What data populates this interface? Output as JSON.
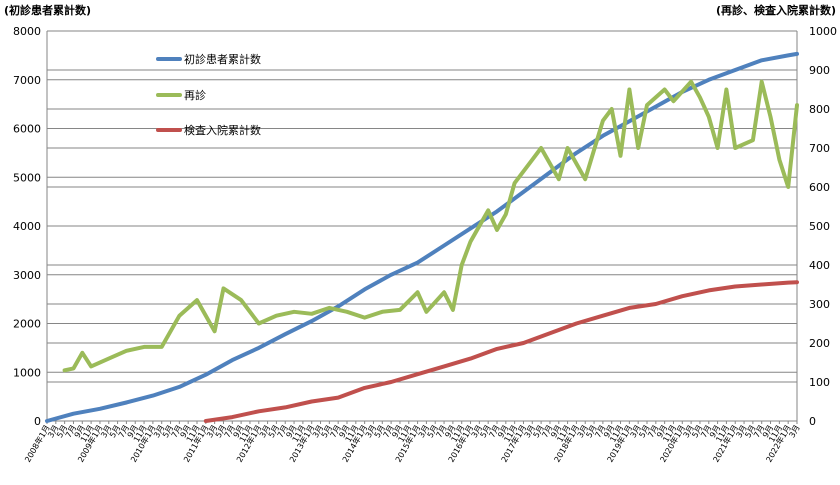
{
  "chart_data": {
    "type": "line",
    "ylabel_left": "(初診患者累計数)",
    "ylabel_right": "(再診、検査入院累計数)",
    "ylim_left": [
      0,
      8000
    ],
    "ylim_right": [
      0,
      1000
    ],
    "yticks_left": [
      "0",
      "1000",
      "2000",
      "3000",
      "4000",
      "5000",
      "6000",
      "7000",
      "8000"
    ],
    "yticks_right": [
      "0",
      "100",
      "200",
      "300",
      "400",
      "500",
      "600",
      "700",
      "800",
      "900",
      "1000"
    ],
    "grid": true,
    "legend_position": "top-left",
    "x_range": [
      "2008年1月",
      "2022年3月"
    ],
    "x_major_labels": [
      "2008年1月",
      "2009年1月",
      "2010年1月",
      "2011年1月",
      "2012年1月",
      "2013年1月",
      "2014年1月",
      "2015年1月",
      "2016年1月",
      "2017年1月",
      "2018年1月",
      "2019年1月",
      "2020年1月",
      "2021年1月",
      "2022年1月"
    ],
    "x_minor_labels": [
      "3月",
      "5月",
      "7月",
      "9月",
      "11月"
    ],
    "series": [
      {
        "name": "初診患者累計数",
        "axis": "left",
        "color": "#4f81bd",
        "points": [
          [
            "2008-01",
            0
          ],
          [
            "2008-07",
            150
          ],
          [
            "2009-01",
            250
          ],
          [
            "2009-07",
            380
          ],
          [
            "2010-01",
            520
          ],
          [
            "2010-07",
            700
          ],
          [
            "2011-01",
            950
          ],
          [
            "2011-07",
            1250
          ],
          [
            "2012-01",
            1500
          ],
          [
            "2012-07",
            1780
          ],
          [
            "2013-01",
            2050
          ],
          [
            "2013-07",
            2350
          ],
          [
            "2014-01",
            2700
          ],
          [
            "2014-07",
            3000
          ],
          [
            "2015-01",
            3250
          ],
          [
            "2015-07",
            3600
          ],
          [
            "2016-01",
            3950
          ],
          [
            "2016-07",
            4300
          ],
          [
            "2017-01",
            4700
          ],
          [
            "2017-07",
            5100
          ],
          [
            "2018-01",
            5500
          ],
          [
            "2018-07",
            5850
          ],
          [
            "2019-01",
            6150
          ],
          [
            "2019-07",
            6450
          ],
          [
            "2020-01",
            6750
          ],
          [
            "2020-07",
            7000
          ],
          [
            "2021-01",
            7200
          ],
          [
            "2021-07",
            7400
          ],
          [
            "2022-01",
            7500
          ],
          [
            "2022-03",
            7530
          ]
        ]
      },
      {
        "name": "再診",
        "axis": "right",
        "color": "#9bbb59",
        "points": [
          [
            "2008-05",
            130
          ],
          [
            "2008-07",
            135
          ],
          [
            "2008-09",
            175
          ],
          [
            "2008-11",
            140
          ],
          [
            "2009-03",
            160
          ],
          [
            "2009-07",
            180
          ],
          [
            "2009-11",
            190
          ],
          [
            "2010-03",
            190
          ],
          [
            "2010-07",
            270
          ],
          [
            "2010-11",
            310
          ],
          [
            "2011-03",
            230
          ],
          [
            "2011-05",
            340
          ],
          [
            "2011-09",
            310
          ],
          [
            "2012-01",
            250
          ],
          [
            "2012-05",
            270
          ],
          [
            "2012-09",
            280
          ],
          [
            "2013-01",
            275
          ],
          [
            "2013-05",
            290
          ],
          [
            "2013-09",
            280
          ],
          [
            "2014-01",
            265
          ],
          [
            "2014-05",
            280
          ],
          [
            "2014-09",
            285
          ],
          [
            "2015-01",
            330
          ],
          [
            "2015-03",
            280
          ],
          [
            "2015-07",
            330
          ],
          [
            "2015-09",
            285
          ],
          [
            "2015-11",
            400
          ],
          [
            "2016-01",
            460
          ],
          [
            "2016-05",
            540
          ],
          [
            "2016-07",
            490
          ],
          [
            "2016-09",
            530
          ],
          [
            "2016-11",
            610
          ],
          [
            "2017-03",
            670
          ],
          [
            "2017-05",
            700
          ],
          [
            "2017-09",
            620
          ],
          [
            "2017-11",
            700
          ],
          [
            "2018-03",
            620
          ],
          [
            "2018-07",
            770
          ],
          [
            "2018-09",
            800
          ],
          [
            "2018-11",
            680
          ],
          [
            "2019-01",
            850
          ],
          [
            "2019-03",
            700
          ],
          [
            "2019-05",
            810
          ],
          [
            "2019-09",
            850
          ],
          [
            "2019-11",
            820
          ],
          [
            "2020-03",
            870
          ],
          [
            "2020-05",
            830
          ],
          [
            "2020-07",
            780
          ],
          [
            "2020-09",
            700
          ],
          [
            "2020-11",
            850
          ],
          [
            "2021-01",
            700
          ],
          [
            "2021-05",
            720
          ],
          [
            "2021-07",
            870
          ],
          [
            "2021-09",
            780
          ],
          [
            "2021-11",
            670
          ],
          [
            "2022-01",
            600
          ],
          [
            "2022-03",
            810
          ]
        ]
      },
      {
        "name": "検査入院累計数",
        "axis": "right",
        "color": "#c0504d",
        "points": [
          [
            "2011-01",
            0
          ],
          [
            "2011-07",
            10
          ],
          [
            "2012-01",
            25
          ],
          [
            "2012-07",
            35
          ],
          [
            "2013-01",
            50
          ],
          [
            "2013-07",
            60
          ],
          [
            "2014-01",
            85
          ],
          [
            "2014-07",
            100
          ],
          [
            "2015-01",
            120
          ],
          [
            "2015-07",
            140
          ],
          [
            "2016-01",
            160
          ],
          [
            "2016-07",
            185
          ],
          [
            "2017-01",
            200
          ],
          [
            "2017-07",
            225
          ],
          [
            "2018-01",
            250
          ],
          [
            "2018-07",
            270
          ],
          [
            "2019-01",
            290
          ],
          [
            "2019-07",
            300
          ],
          [
            "2020-01",
            320
          ],
          [
            "2020-07",
            335
          ],
          [
            "2021-01",
            345
          ],
          [
            "2021-07",
            350
          ],
          [
            "2022-01",
            355
          ],
          [
            "2022-03",
            356
          ]
        ]
      }
    ]
  }
}
